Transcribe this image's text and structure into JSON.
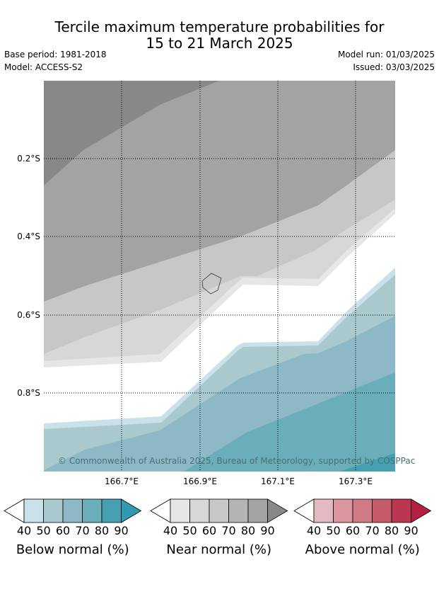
{
  "header": {
    "title_line1": "Tercile maximum temperature probabilities for",
    "title_line2": "15 to 21 March 2025",
    "base_period": "Base period: 1981-2018",
    "model": "Model: ACCESS-S2",
    "model_run": "Model run: 01/03/2025",
    "issued": "Issued: 03/03/2025"
  },
  "map": {
    "copyright": "© Commonwealth of Australia 2025, Bureau of Meteorology, supported by COSPPac",
    "lon_labels": [
      "166.7°E",
      "166.9°E",
      "167.1°E",
      "167.3°E"
    ],
    "lat_labels": [
      "0.2°S",
      "0.4°S",
      "0.6°S",
      "0.8°S"
    ]
  },
  "chart_data": {
    "type": "heatmap",
    "title": "Tercile maximum temperature probabilities for 15 to 21 March 2025",
    "x_ticks": [
      "166.7°E",
      "166.9°E",
      "167.1°E",
      "167.3°E"
    ],
    "y_ticks": [
      "0.2°S",
      "0.4°S",
      "0.6°S",
      "0.8°S"
    ],
    "grid": true,
    "colorbars": [
      {
        "name": "Below normal (%)",
        "ticks": [
          40,
          50,
          60,
          70,
          80,
          90
        ],
        "colors": [
          "#ffffff",
          "#c9e1e8",
          "#a9c9cd",
          "#8db9c6",
          "#6aaeb9",
          "#46a0b1",
          "#3399b0"
        ]
      },
      {
        "name": "Near normal (%)",
        "ticks": [
          40,
          50,
          60,
          70,
          80,
          90
        ],
        "colors": [
          "#ffffff",
          "#e6e6e6",
          "#d7d7d7",
          "#c7c7c7",
          "#b4b4b4",
          "#a3a3a3",
          "#888888"
        ]
      },
      {
        "name": "Above normal (%)",
        "ticks": [
          40,
          50,
          60,
          70,
          80,
          90
        ],
        "colors": [
          "#ffffff",
          "#e4bac2",
          "#d9969f",
          "#cf7a85",
          "#c65c6b",
          "#bb3650",
          "#b51f42"
        ]
      }
    ]
  }
}
